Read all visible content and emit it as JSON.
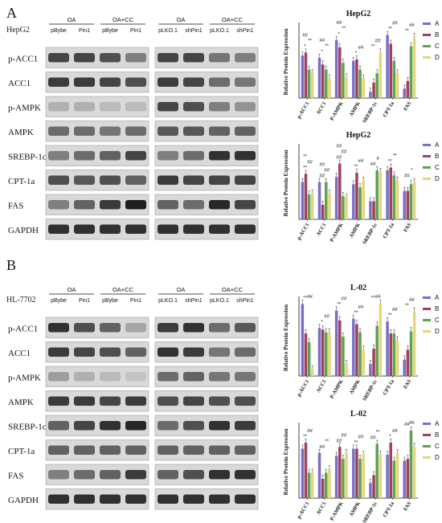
{
  "panel_a": {
    "letter": "A",
    "cell_line": "HepG2",
    "left_blot": {
      "groups": [
        "OA",
        "OA+CC"
      ],
      "lanes": [
        "pBybe",
        "Pin1",
        "pBybe",
        "Pin1"
      ]
    },
    "right_blot": {
      "groups": [
        "OA",
        "OA+CC"
      ],
      "lanes": [
        "pLKO.1",
        "shPin1",
        "pLKO.1",
        "shPin1"
      ]
    },
    "proteins": [
      "p-ACC1",
      "ACC1",
      "p-AMPK",
      "AMPK",
      "SREBP-1c",
      "CPT-1a",
      "FAS",
      "GAPDH"
    ],
    "band_intensity_left": [
      [
        0.75,
        0.75,
        0.7,
        0.45
      ],
      [
        0.8,
        0.8,
        0.75,
        0.7
      ],
      [
        0.2,
        0.2,
        0.15,
        0.15
      ],
      [
        0.55,
        0.55,
        0.5,
        0.55
      ],
      [
        0.45,
        0.55,
        0.6,
        0.75
      ],
      [
        0.7,
        0.65,
        0.7,
        0.6
      ],
      [
        0.45,
        0.6,
        0.8,
        0.95
      ],
      [
        0.85,
        0.85,
        0.85,
        0.85
      ]
    ],
    "band_intensity_right": [
      [
        0.75,
        0.75,
        0.5,
        0.45
      ],
      [
        0.8,
        0.75,
        0.55,
        0.5
      ],
      [
        0.75,
        0.7,
        0.45,
        0.35
      ],
      [
        0.65,
        0.65,
        0.6,
        0.6
      ],
      [
        0.45,
        0.55,
        0.85,
        0.85
      ],
      [
        0.8,
        0.75,
        0.75,
        0.75
      ],
      [
        0.6,
        0.55,
        0.9,
        0.75
      ],
      [
        0.85,
        0.85,
        0.85,
        0.85
      ]
    ]
  },
  "panel_b": {
    "letter": "B",
    "cell_line": "HL-7702",
    "left_blot": {
      "groups": [
        "OA",
        "OA+CC"
      ],
      "lanes": [
        "pBybe",
        "Pin1",
        "pBybe",
        "Pin1"
      ]
    },
    "right_blot": {
      "groups": [
        "OA",
        "OA+CC"
      ],
      "lanes": [
        "pLKO.1",
        "shPin1",
        "pLKO.1",
        "shPin1"
      ]
    },
    "proteins": [
      "p-ACC1",
      "ACC1",
      "p-AMPK",
      "AMPK",
      "SREBP-1c",
      "CPT-1a",
      "FAS",
      "GAPDH"
    ],
    "band_intensity_left": [
      [
        0.85,
        0.7,
        0.6,
        0.25
      ],
      [
        0.8,
        0.75,
        0.7,
        0.6
      ],
      [
        0.3,
        0.2,
        0.15,
        0.1
      ],
      [
        0.8,
        0.8,
        0.75,
        0.8
      ],
      [
        0.6,
        0.75,
        0.85,
        0.9
      ],
      [
        0.6,
        0.6,
        0.6,
        0.6
      ],
      [
        0.45,
        0.55,
        0.6,
        0.8
      ],
      [
        0.85,
        0.85,
        0.85,
        0.85
      ]
    ],
    "band_intensity_right": [
      [
        0.8,
        0.85,
        0.55,
        0.65
      ],
      [
        0.85,
        0.8,
        0.5,
        0.55
      ],
      [
        0.55,
        0.6,
        0.5,
        0.5
      ],
      [
        0.7,
        0.75,
        0.7,
        0.7
      ],
      [
        0.55,
        0.7,
        0.85,
        0.8
      ],
      [
        0.6,
        0.6,
        0.6,
        0.6
      ],
      [
        0.6,
        0.7,
        0.85,
        0.85
      ],
      [
        0.85,
        0.85,
        0.85,
        0.85
      ]
    ]
  },
  "series_colors": {
    "A": "#7b6fc7",
    "B": "#a0425b",
    "C": "#62a052",
    "D": "#e2d87a"
  },
  "chart_data": [
    {
      "type": "bar",
      "title": "HepG2",
      "ylabel": "Relative Protein Expression",
      "categories": [
        "p-ACC1",
        "ACC1",
        "P-AMPK",
        "AMPK",
        "SREBP-1c",
        "CPT-1a",
        "FAS"
      ],
      "ylim": [
        0,
        1.4
      ],
      "series": [
        {
          "name": "A",
          "values": [
            0.82,
            0.78,
            1.12,
            0.72,
            0.12,
            1.22,
            0.18
          ]
        },
        {
          "name": "B",
          "values": [
            0.88,
            0.65,
            0.98,
            0.75,
            0.3,
            1.05,
            0.33
          ]
        },
        {
          "name": "C",
          "values": [
            0.55,
            0.55,
            0.68,
            0.55,
            0.48,
            0.72,
            1.0
          ]
        },
        {
          "name": "D",
          "values": [
            0.48,
            0.38,
            0.4,
            0.38,
            0.88,
            0.48,
            1.18
          ]
        }
      ],
      "annotations": [
        "*",
        "*",
        "*",
        "*",
        "**",
        "**",
        "**",
        "**",
        "**",
        "**",
        "##",
        "##",
        "##",
        "##",
        "##",
        "##",
        "##"
      ]
    },
    {
      "type": "bar",
      "title": "HepG2",
      "ylabel": "Relative Protein Expression",
      "categories": [
        "p-ACC1",
        "ACC1",
        "P-AMPK",
        "AMPK",
        "SREBP-1c",
        "CPT-1a",
        "FAS"
      ],
      "ylim": [
        0,
        1.4
      ],
      "series": [
        {
          "name": "A",
          "values": [
            0.72,
            0.72,
            0.82,
            0.68,
            0.35,
            0.95,
            0.55
          ]
        },
        {
          "name": "B",
          "values": [
            0.88,
            0.28,
            1.08,
            0.9,
            0.35,
            1.0,
            0.55
          ]
        },
        {
          "name": "C",
          "values": [
            0.48,
            0.72,
            0.45,
            0.62,
            0.95,
            0.85,
            0.68
          ]
        },
        {
          "name": "D",
          "values": [
            0.5,
            0.5,
            0.42,
            0.75,
            0.92,
            0.75,
            0.72
          ]
        }
      ],
      "annotations": [
        "**",
        "##",
        "##",
        "**",
        "##",
        "**",
        "##",
        "##",
        "##",
        "##",
        "##",
        "#",
        "**",
        "*",
        "**",
        "##",
        "##"
      ]
    },
    {
      "type": "bar",
      "title": "L-02",
      "ylabel": "Relative Protein Expression",
      "categories": [
        "p-ACC1",
        "ACC1",
        "P-AMPK",
        "AMPK",
        "SREBP-1c",
        "CPT-1a",
        "FAS"
      ],
      "ylim": [
        0,
        1.4
      ],
      "series": [
        {
          "name": "A",
          "values": [
            1.32,
            0.88,
            1.2,
            1.05,
            0.22,
            1.0,
            0.3
          ]
        },
        {
          "name": "B",
          "values": [
            0.78,
            0.85,
            1.02,
            0.95,
            0.5,
            0.78,
            0.48
          ]
        },
        {
          "name": "C",
          "values": [
            0.62,
            0.8,
            0.72,
            0.8,
            0.92,
            0.78,
            0.82
          ]
        },
        {
          "name": "D",
          "values": [
            0.12,
            0.8,
            0.22,
            0.48,
            1.32,
            0.65,
            1.18
          ]
        }
      ],
      "annotations": [
        "**",
        "*",
        "**",
        "**",
        "**",
        "**",
        "**",
        "##",
        "##",
        "##",
        "##",
        "##",
        "##",
        "##"
      ]
    },
    {
      "type": "bar",
      "title": "L-02",
      "ylabel": "Relative Protein Expression",
      "categories": [
        "p-ACC1",
        "ACC1",
        "P-AMPK",
        "AMPK",
        "SREBP-1c",
        "CPT-1a",
        "FAS"
      ],
      "ylim": [
        0,
        1.2
      ],
      "series": [
        {
          "name": "A",
          "values": [
            0.82,
            0.75,
            0.7,
            0.82,
            0.25,
            0.72,
            0.62
          ]
        },
        {
          "name": "B",
          "values": [
            0.92,
            0.32,
            0.85,
            0.82,
            0.38,
            0.92,
            0.65
          ]
        },
        {
          "name": "C",
          "values": [
            0.42,
            0.42,
            0.65,
            0.65,
            0.9,
            0.62,
            1.12
          ]
        },
        {
          "name": "D",
          "values": [
            0.42,
            0.48,
            0.75,
            0.72,
            0.72,
            0.75,
            0.85
          ]
        }
      ],
      "annotations": [
        "**",
        "##",
        "##",
        "**",
        "##",
        "*",
        "##",
        "##",
        "**",
        "##",
        "##",
        "**",
        "##",
        "##"
      ]
    }
  ]
}
